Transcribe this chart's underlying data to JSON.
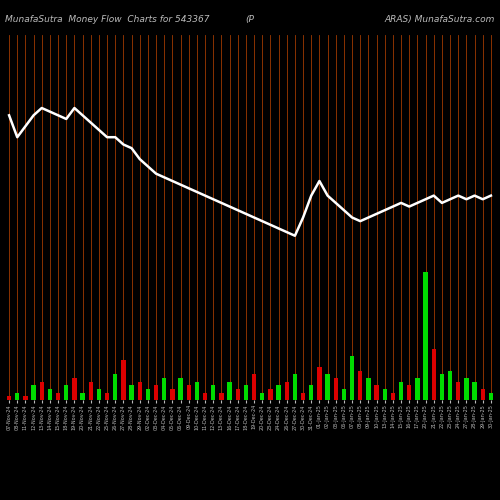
{
  "title_left": "MunafaSutra  Money Flow  Charts for 543367",
  "title_mid": "(P",
  "title_right": "ARAS) MunafaSutra.com",
  "bg_color": "#000000",
  "bar_color_pos": "#00dd00",
  "bar_color_neg": "#dd0000",
  "line_color": "#ffffff",
  "grid_color": "#bb4400",
  "title_color": "#bbbbbb",
  "title_fontsize": 6.5,
  "dates": [
    "07-Nov-24",
    "08-Nov-24",
    "11-Nov-24",
    "12-Nov-24",
    "13-Nov-24",
    "14-Nov-24",
    "15-Nov-24",
    "18-Nov-24",
    "19-Nov-24",
    "20-Nov-24",
    "21-Nov-24",
    "22-Nov-24",
    "25-Nov-24",
    "26-Nov-24",
    "27-Nov-24",
    "28-Nov-24",
    "29-Nov-24",
    "02-Dec-24",
    "03-Dec-24",
    "04-Dec-24",
    "05-Dec-24",
    "06-Dec-24",
    "09-Dec-24",
    "10-Dec-24",
    "11-Dec-24",
    "12-Dec-24",
    "13-Dec-24",
    "16-Dec-24",
    "17-Dec-24",
    "18-Dec-24",
    "19-Dec-24",
    "20-Dec-24",
    "23-Dec-24",
    "24-Dec-24",
    "26-Dec-24",
    "27-Dec-24",
    "30-Dec-24",
    "31-Dec-24",
    "01-Jan-25",
    "02-Jan-25",
    "03-Jan-25",
    "06-Jan-25",
    "07-Jan-25",
    "08-Jan-25",
    "09-Jan-25",
    "10-Jan-25",
    "13-Jan-25",
    "14-Jan-25",
    "15-Jan-25",
    "16-Jan-25",
    "17-Jan-25",
    "20-Jan-25",
    "21-Jan-25",
    "22-Jan-25",
    "23-Jan-25",
    "24-Jan-25",
    "27-Jan-25",
    "28-Jan-25",
    "29-Jan-25",
    "30-Jan-25"
  ],
  "bar_values": [
    1,
    2,
    1,
    4,
    5,
    3,
    2,
    4,
    6,
    2,
    5,
    3,
    2,
    7,
    11,
    4,
    5,
    3,
    4,
    6,
    3,
    6,
    4,
    5,
    2,
    4,
    2,
    5,
    3,
    4,
    7,
    2,
    3,
    4,
    5,
    7,
    2,
    4,
    9,
    7,
    6,
    3,
    12,
    8,
    6,
    4,
    3,
    2,
    5,
    4,
    6,
    35,
    14,
    7,
    8,
    5,
    6,
    5,
    3,
    2
  ],
  "bar_colors_flag": [
    0,
    1,
    0,
    1,
    0,
    1,
    0,
    1,
    0,
    1,
    0,
    1,
    0,
    1,
    0,
    1,
    0,
    1,
    0,
    1,
    0,
    1,
    0,
    1,
    0,
    1,
    0,
    1,
    0,
    1,
    0,
    1,
    0,
    1,
    0,
    1,
    0,
    1,
    0,
    1,
    0,
    1,
    1,
    0,
    1,
    0,
    1,
    0,
    1,
    0,
    1,
    1,
    0,
    1,
    1,
    0,
    1,
    1,
    0,
    1
  ],
  "line_values": [
    78,
    72,
    75,
    78,
    80,
    79,
    78,
    77,
    80,
    78,
    76,
    74,
    72,
    72,
    70,
    69,
    66,
    64,
    62,
    61,
    60,
    59,
    58,
    57,
    56,
    55,
    54,
    53,
    52,
    51,
    50,
    49,
    48,
    47,
    46,
    45,
    50,
    56,
    60,
    56,
    54,
    52,
    50,
    49,
    50,
    51,
    52,
    53,
    54,
    53,
    54,
    55,
    56,
    54,
    55,
    56,
    55,
    56,
    55,
    56
  ]
}
